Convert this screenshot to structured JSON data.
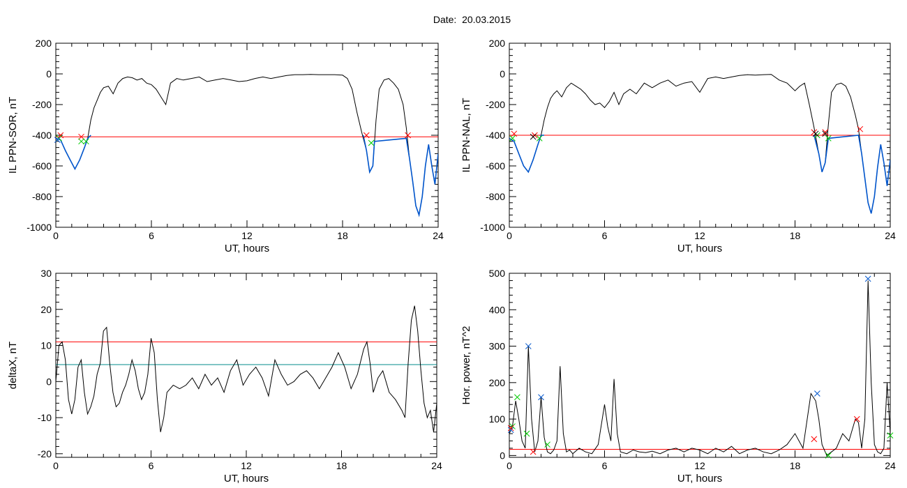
{
  "page": {
    "title": "Date:  20.03.2015"
  },
  "chart_data": [
    {
      "type": "line",
      "xlabel": "UT, hours",
      "ylabel": "IL PPN-SOR, nT",
      "xlim": [
        0,
        24
      ],
      "ylim": [
        -1000,
        200
      ],
      "xticks": [
        0,
        6,
        12,
        18,
        24
      ],
      "yticks": [
        -1000,
        -800,
        -600,
        -400,
        -200,
        0,
        200
      ],
      "threshold": {
        "value": -410,
        "color": "#ff0000"
      },
      "series": [
        {
          "color": "#000000",
          "x": [
            0,
            0.3,
            0.6,
            0.9,
            1.2,
            1.5,
            1.8,
            2.0,
            2.2,
            2.4,
            2.6,
            2.8,
            3.0,
            3.3,
            3.6,
            3.9,
            4.2,
            4.5,
            4.8,
            5.1,
            5.4,
            5.7,
            6.0,
            6.3,
            6.6,
            6.9,
            7.2,
            7.6,
            8.0,
            8.5,
            9.0,
            9.5,
            10.0,
            10.5,
            11.0,
            11.5,
            12.0,
            12.5,
            13.0,
            13.5,
            14.0,
            14.5,
            15.0,
            15.5,
            16.0,
            16.5,
            17.0,
            17.5,
            18.0,
            18.3,
            18.6,
            18.9,
            19.2,
            19.5,
            19.7,
            19.9,
            20.1,
            20.3,
            20.6,
            20.9,
            21.2,
            21.5,
            21.8,
            22.0,
            22.2,
            22.4,
            22.6,
            22.8,
            23.0,
            23.2,
            23.4,
            23.6,
            23.8,
            24.0
          ],
          "y": [
            -420,
            -430,
            -500,
            -560,
            -620,
            -560,
            -480,
            -420,
            -300,
            -220,
            -170,
            -120,
            -90,
            -80,
            -130,
            -60,
            -30,
            -20,
            -25,
            -40,
            -30,
            -60,
            -70,
            -100,
            -150,
            -200,
            -60,
            -30,
            -40,
            -30,
            -20,
            -50,
            -40,
            -30,
            -40,
            -50,
            -45,
            -30,
            -20,
            -30,
            -20,
            -10,
            -5,
            -5,
            -3,
            -5,
            -5,
            -5,
            -8,
            -30,
            -100,
            -250,
            -380,
            -500,
            -640,
            -600,
            -300,
            -100,
            -40,
            -30,
            -60,
            -100,
            -200,
            -350,
            -550,
            -700,
            -860,
            -920,
            -800,
            -600,
            -460,
            -600,
            -720,
            -520
          ]
        },
        {
          "color": "#0055cc",
          "x": [
            0,
            0.3,
            0.6,
            0.9,
            1.2,
            1.5,
            1.8,
            2.0,
            2.2,
            19.3,
            19.5,
            19.7,
            19.9,
            20.0,
            22.0,
            22.2,
            22.4,
            22.6,
            22.8,
            23.0,
            23.2,
            23.4,
            23.6,
            23.8,
            24.0
          ],
          "y": [
            -420,
            -430,
            -500,
            -560,
            -620,
            -560,
            -480,
            -420,
            -400,
            -400,
            -500,
            -640,
            -600,
            -440,
            -420,
            -550,
            -700,
            -860,
            -920,
            -800,
            -600,
            -460,
            -600,
            -720,
            -520
          ]
        }
      ],
      "markers": [
        {
          "color": "#ff0000",
          "x": [
            0.3,
            1.6,
            19.5,
            22.1
          ],
          "y": [
            -400,
            -410,
            -400,
            -400
          ]
        },
        {
          "color": "#00cc00",
          "x": [
            0.2,
            1.6,
            1.9,
            19.8
          ],
          "y": [
            -420,
            -440,
            -440,
            -450
          ]
        },
        {
          "color": "#0055cc",
          "x": [
            0.1
          ],
          "y": [
            -430
          ]
        }
      ]
    },
    {
      "type": "line",
      "xlabel": "UT, hours",
      "ylabel": "IL PPN-NAL, nT",
      "xlim": [
        0,
        24
      ],
      "ylim": [
        -1000,
        200
      ],
      "xticks": [
        0,
        6,
        12,
        18,
        24
      ],
      "yticks": [
        -1000,
        -800,
        -600,
        -400,
        -200,
        0,
        200
      ],
      "threshold": {
        "value": -400,
        "color": "#ff0000"
      },
      "series": [
        {
          "color": "#000000",
          "x": [
            0,
            0.3,
            0.6,
            0.9,
            1.2,
            1.5,
            1.8,
            2.0,
            2.2,
            2.4,
            2.6,
            2.8,
            3.0,
            3.3,
            3.6,
            3.9,
            4.2,
            4.5,
            4.8,
            5.1,
            5.4,
            5.7,
            6.0,
            6.3,
            6.6,
            6.9,
            7.2,
            7.6,
            8.0,
            8.5,
            9.0,
            9.5,
            10.0,
            10.5,
            11.0,
            11.5,
            12.0,
            12.5,
            13.0,
            13.5,
            14.0,
            14.5,
            15.0,
            15.5,
            16.0,
            16.5,
            17.0,
            17.5,
            18.0,
            18.3,
            18.6,
            18.9,
            19.2,
            19.5,
            19.7,
            19.9,
            20.1,
            20.3,
            20.6,
            20.9,
            21.2,
            21.5,
            21.8,
            22.0,
            22.2,
            22.4,
            22.6,
            22.8,
            23.0,
            23.2,
            23.4,
            23.6,
            23.8,
            24.0
          ],
          "y": [
            -420,
            -440,
            -520,
            -600,
            -640,
            -560,
            -460,
            -400,
            -300,
            -220,
            -160,
            -130,
            -110,
            -150,
            -90,
            -60,
            -80,
            -100,
            -130,
            -170,
            -200,
            -190,
            -220,
            -180,
            -120,
            -200,
            -130,
            -100,
            -130,
            -60,
            -90,
            -60,
            -40,
            -80,
            -60,
            -50,
            -120,
            -30,
            -20,
            -30,
            -20,
            -10,
            -5,
            -8,
            -5,
            -3,
            -40,
            -60,
            -110,
            -80,
            -60,
            -200,
            -350,
            -520,
            -640,
            -580,
            -330,
            -120,
            -70,
            -60,
            -80,
            -150,
            -270,
            -360,
            -520,
            -680,
            -840,
            -910,
            -800,
            -610,
            -460,
            -580,
            -730,
            -560
          ]
        },
        {
          "color": "#0055cc",
          "x": [
            0,
            0.3,
            0.6,
            0.9,
            1.2,
            1.5,
            1.8,
            2.0,
            2.2,
            19.2,
            19.5,
            19.7,
            19.9,
            20.1,
            22.0,
            22.2,
            22.4,
            22.6,
            22.8,
            23.0,
            23.2,
            23.4,
            23.6,
            23.8,
            24.0
          ],
          "y": [
            -420,
            -440,
            -520,
            -600,
            -640,
            -560,
            -460,
            -400,
            -400,
            -400,
            -520,
            -640,
            -580,
            -420,
            -400,
            -520,
            -680,
            -840,
            -910,
            -800,
            -610,
            -460,
            -580,
            -730,
            -560
          ]
        }
      ],
      "markers": [
        {
          "color": "#ff0000",
          "x": [
            0.3,
            1.6,
            19.2,
            19.9,
            22.1
          ],
          "y": [
            -390,
            -400,
            -380,
            -380,
            -360
          ]
        },
        {
          "color": "#00cc00",
          "x": [
            0.2,
            1.9,
            19.4,
            20.1
          ],
          "y": [
            -420,
            -420,
            -400,
            -420
          ]
        },
        {
          "color": "#000000",
          "x": [
            1.5,
            19.3,
            19.9
          ],
          "y": [
            -410,
            -390,
            -390
          ]
        }
      ]
    },
    {
      "type": "line",
      "xlabel": "UT, hours",
      "ylabel": "deltaX, nT",
      "xlim": [
        0,
        24
      ],
      "ylim": [
        -21,
        30
      ],
      "xticks": [
        0,
        6,
        12,
        18,
        24
      ],
      "yticks": [
        -20,
        -10,
        0,
        10,
        20,
        30
      ],
      "thresholds": [
        {
          "value": 11,
          "color": "#ff0000"
        },
        {
          "value": 4.7,
          "color": "#008b8b"
        }
      ],
      "series": [
        {
          "color": "#000000",
          "x": [
            0,
            0.2,
            0.4,
            0.6,
            0.8,
            1.0,
            1.2,
            1.4,
            1.6,
            1.8,
            2.0,
            2.2,
            2.4,
            2.6,
            2.8,
            3.0,
            3.2,
            3.4,
            3.6,
            3.8,
            4.0,
            4.2,
            4.4,
            4.6,
            4.8,
            5.0,
            5.2,
            5.4,
            5.6,
            5.8,
            6.0,
            6.2,
            6.4,
            6.6,
            6.8,
            7.0,
            7.4,
            7.8,
            8.2,
            8.6,
            9.0,
            9.4,
            9.8,
            10.2,
            10.6,
            11.0,
            11.4,
            11.8,
            12.2,
            12.6,
            13.0,
            13.4,
            13.8,
            14.2,
            14.6,
            15.0,
            15.4,
            15.8,
            16.2,
            16.6,
            17.0,
            17.4,
            17.8,
            18.2,
            18.6,
            19.0,
            19.4,
            19.6,
            19.8,
            20.0,
            20.3,
            20.6,
            21.0,
            21.4,
            21.8,
            22.0,
            22.2,
            22.4,
            22.6,
            22.8,
            23.0,
            23.2,
            23.4,
            23.6,
            23.8,
            24.0
          ],
          "y": [
            0,
            10,
            11,
            6,
            -5,
            -9,
            -5,
            4,
            6,
            -3,
            -9,
            -7,
            -4,
            2,
            5,
            14,
            15,
            5,
            -3,
            -7,
            -6,
            -3,
            -1,
            2,
            6,
            3,
            -2,
            -5,
            -3,
            2,
            12,
            8,
            -5,
            -14,
            -10,
            -3,
            -1,
            -2,
            -1,
            1,
            -2,
            2,
            -1,
            1,
            -3,
            3,
            6,
            -1,
            2,
            4,
            1,
            -4,
            6,
            2,
            -1,
            0,
            2,
            3,
            1,
            -2,
            1,
            4,
            8,
            4,
            -2,
            2,
            9,
            11,
            5,
            -3,
            1,
            3,
            -3,
            -5,
            -8,
            -10,
            5,
            17,
            21,
            14,
            3,
            -6,
            -10,
            -8,
            -14,
            -6
          ]
        }
      ],
      "markers": []
    },
    {
      "type": "line",
      "xlabel": "UT, hours",
      "ylabel": "Hor. power, nT^2",
      "xlim": [
        0,
        24
      ],
      "ylim": [
        -5,
        500
      ],
      "xticks": [
        0,
        6,
        12,
        18,
        24
      ],
      "yticks": [
        0,
        100,
        200,
        300,
        400,
        500
      ],
      "threshold": {
        "value": 17,
        "color": "#ff0000"
      },
      "series": [
        {
          "color": "#000000",
          "x": [
            0,
            0.2,
            0.4,
            0.6,
            0.8,
            1.0,
            1.2,
            1.4,
            1.6,
            1.8,
            2.0,
            2.2,
            2.4,
            2.6,
            2.8,
            3.0,
            3.2,
            3.4,
            3.6,
            3.8,
            4.0,
            4.4,
            4.8,
            5.2,
            5.6,
            6.0,
            6.2,
            6.4,
            6.6,
            6.8,
            7.0,
            7.4,
            7.8,
            8.2,
            8.6,
            9.0,
            9.5,
            10.0,
            10.5,
            11.0,
            11.5,
            12.0,
            12.5,
            13.0,
            13.5,
            14.0,
            14.5,
            15.0,
            15.5,
            16.0,
            16.5,
            17.0,
            17.5,
            18.0,
            18.5,
            19.0,
            19.3,
            19.5,
            19.7,
            20.0,
            20.3,
            20.6,
            21.0,
            21.4,
            21.8,
            22.0,
            22.2,
            22.4,
            22.6,
            22.8,
            23.0,
            23.2,
            23.4,
            23.6,
            23.8,
            24.0
          ],
          "y": [
            60,
            80,
            150,
            100,
            40,
            20,
            300,
            100,
            10,
            40,
            160,
            50,
            10,
            5,
            15,
            40,
            245,
            60,
            10,
            15,
            5,
            20,
            10,
            5,
            30,
            140,
            80,
            40,
            210,
            60,
            10,
            5,
            15,
            10,
            8,
            12,
            5,
            15,
            20,
            10,
            20,
            15,
            5,
            20,
            10,
            25,
            5,
            15,
            20,
            10,
            5,
            15,
            30,
            60,
            20,
            170,
            150,
            100,
            30,
            0,
            10,
            20,
            60,
            40,
            100,
            90,
            20,
            100,
            480,
            200,
            30,
            10,
            5,
            20,
            200,
            60
          ]
        }
      ],
      "markers": [
        {
          "color": "#0055cc",
          "x": [
            0.1,
            1.2,
            2.0,
            19.4,
            22.6
          ],
          "y": [
            70,
            300,
            160,
            170,
            485
          ]
        },
        {
          "color": "#00cc00",
          "x": [
            0.2,
            0.5,
            1.1,
            2.4,
            20.1,
            24.0
          ],
          "y": [
            80,
            160,
            60,
            30,
            0,
            55
          ]
        },
        {
          "color": "#ff0000",
          "x": [
            0.1,
            1.5,
            19.2,
            21.9
          ],
          "y": [
            75,
            10,
            45,
            100
          ]
        }
      ]
    }
  ]
}
